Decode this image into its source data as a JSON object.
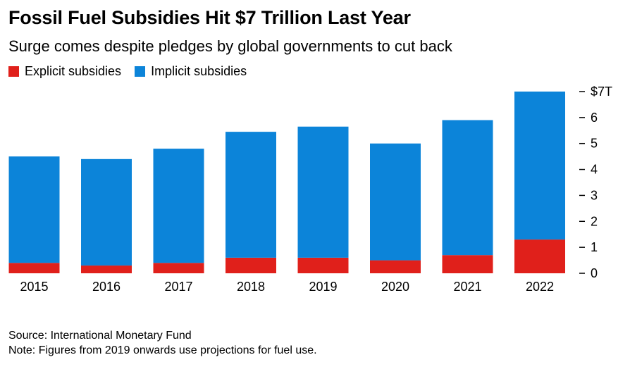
{
  "header": {
    "title": "Fossil Fuel Subsidies Hit $7 Trillion Last Year",
    "subtitle": "Surge comes despite pledges by global governments to cut back"
  },
  "legend": {
    "explicit_label": "Explicit subsidies",
    "implicit_label": "Implicit subsidies"
  },
  "footer": {
    "source": "Source: International Monetary Fund",
    "note": "Note: Figures from 2019 onwards use projections for fuel use."
  },
  "colors": {
    "explicit": "#e0201b",
    "implicit": "#0c84d9",
    "axis_text": "#000000",
    "tick": "#000000"
  },
  "chart_data": {
    "type": "bar",
    "stacked": true,
    "categories": [
      "2015",
      "2016",
      "2017",
      "2018",
      "2019",
      "2020",
      "2021",
      "2022"
    ],
    "series": [
      {
        "name": "Explicit subsidies",
        "values": [
          0.4,
          0.3,
          0.4,
          0.6,
          0.6,
          0.5,
          0.7,
          1.3
        ]
      },
      {
        "name": "Implicit subsidies",
        "values": [
          4.1,
          4.1,
          4.4,
          4.85,
          5.05,
          4.5,
          5.2,
          5.7
        ]
      }
    ],
    "ylim": [
      0,
      7
    ],
    "yticks": [
      0,
      1,
      2,
      3,
      4,
      5,
      6,
      7
    ],
    "ytick_labels": [
      "0",
      "1",
      "2",
      "3",
      "4",
      "5",
      "6",
      "$7T"
    ],
    "y_axis_position": "right",
    "grid": false
  }
}
